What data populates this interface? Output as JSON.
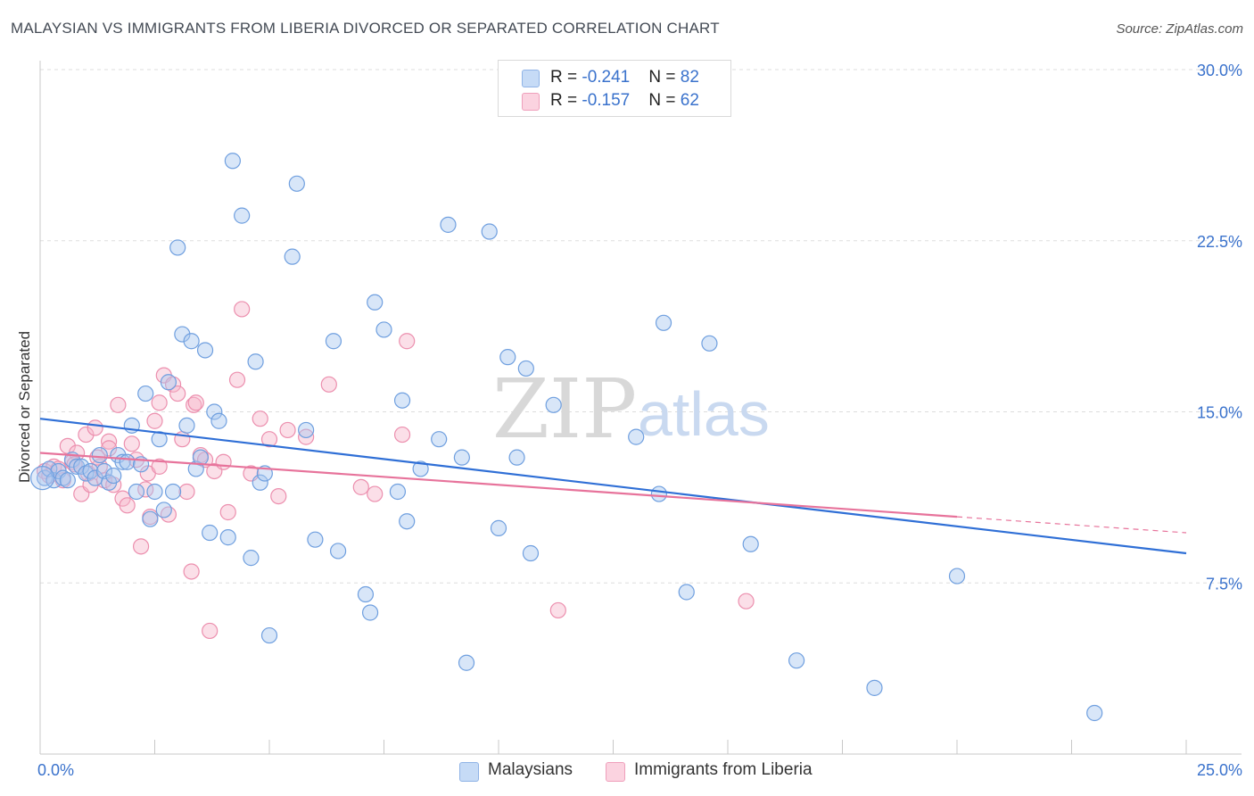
{
  "header": {
    "title": "MALAYSIAN VS IMMIGRANTS FROM LIBERIA DIVORCED OR SEPARATED CORRELATION CHART",
    "source": "Source: ZipAtlas.com"
  },
  "watermark": {
    "zip": "ZIP",
    "atlas": "atlas"
  },
  "legend": {
    "rows": [
      {
        "r_label": "R = ",
        "r_value": "-0.241",
        "n_label": "N = ",
        "n_value": "82",
        "color": "#a9c7f0"
      },
      {
        "r_label": "R = ",
        "r_value": "-0.157",
        "n_label": "N = ",
        "n_value": "62",
        "color": "#f7b8cc"
      }
    ]
  },
  "bottom_legend": [
    {
      "label": "Malaysians",
      "color": "#a9c7f0"
    },
    {
      "label": "Immigrants from Liberia",
      "color": "#f7b8cc"
    }
  ],
  "colors": {
    "blue_fill": "#a9c7f0",
    "blue_stroke": "#6f9fdf",
    "blue_line": "#2f6fd6",
    "pink_fill": "#f7b8cc",
    "pink_stroke": "#ec8fae",
    "pink_line": "#e7739b",
    "tick_label": "#3a72cc",
    "grid": "#dddddd"
  },
  "chart_data": {
    "type": "scatter",
    "title": "MALAYSIAN VS IMMIGRANTS FROM LIBERIA DIVORCED OR SEPARATED CORRELATION CHART",
    "xlabel": "",
    "ylabel": "Divorced or Separated",
    "xlim": [
      0,
      25
    ],
    "ylim": [
      0,
      30
    ],
    "x_tick_labels": [
      "0.0%",
      "25.0%"
    ],
    "y_ticks": [
      7.5,
      15.0,
      22.5,
      30.0
    ],
    "y_tick_labels": [
      "7.5%",
      "15.0%",
      "22.5%",
      "30.0%"
    ],
    "grid": true,
    "series": [
      {
        "name": "Malaysians",
        "r": -0.241,
        "n": 82,
        "trend": {
          "x": [
            0,
            25
          ],
          "y": [
            14.7,
            8.8
          ]
        },
        "points": [
          [
            0.1,
            12.1
          ],
          [
            0.2,
            12.5
          ],
          [
            0.3,
            12.0
          ],
          [
            0.4,
            12.4
          ],
          [
            0.5,
            12.1
          ],
          [
            0.6,
            12.0
          ],
          [
            0.7,
            12.9
          ],
          [
            0.8,
            12.6
          ],
          [
            0.9,
            12.6
          ],
          [
            1.0,
            12.3
          ],
          [
            1.1,
            12.4
          ],
          [
            1.2,
            12.1
          ],
          [
            1.3,
            13.1
          ],
          [
            1.4,
            12.4
          ],
          [
            1.5,
            11.9
          ],
          [
            1.6,
            12.2
          ],
          [
            1.7,
            13.1
          ],
          [
            1.8,
            12.8
          ],
          [
            1.9,
            12.8
          ],
          [
            2.0,
            14.4
          ],
          [
            2.1,
            11.5
          ],
          [
            2.2,
            12.7
          ],
          [
            2.3,
            15.8
          ],
          [
            2.4,
            10.3
          ],
          [
            2.5,
            11.5
          ],
          [
            2.6,
            13.8
          ],
          [
            2.7,
            10.7
          ],
          [
            2.8,
            16.3
          ],
          [
            2.9,
            11.5
          ],
          [
            3.0,
            22.2
          ],
          [
            3.1,
            18.4
          ],
          [
            3.2,
            14.4
          ],
          [
            3.3,
            18.1
          ],
          [
            3.4,
            12.5
          ],
          [
            3.5,
            13.0
          ],
          [
            3.6,
            17.7
          ],
          [
            3.7,
            9.7
          ],
          [
            3.8,
            15.0
          ],
          [
            3.9,
            14.6
          ],
          [
            4.1,
            9.5
          ],
          [
            4.2,
            26.0
          ],
          [
            4.4,
            23.6
          ],
          [
            4.6,
            8.6
          ],
          [
            4.7,
            17.2
          ],
          [
            4.8,
            11.9
          ],
          [
            4.9,
            12.3
          ],
          [
            5.0,
            5.2
          ],
          [
            5.5,
            21.8
          ],
          [
            5.6,
            25.0
          ],
          [
            5.8,
            14.2
          ],
          [
            6.0,
            9.4
          ],
          [
            6.4,
            18.1
          ],
          [
            6.5,
            8.9
          ],
          [
            7.1,
            7.0
          ],
          [
            7.2,
            6.2
          ],
          [
            7.3,
            19.8
          ],
          [
            7.5,
            18.6
          ],
          [
            7.8,
            11.5
          ],
          [
            7.9,
            15.5
          ],
          [
            8.0,
            10.2
          ],
          [
            8.3,
            12.5
          ],
          [
            8.7,
            13.8
          ],
          [
            8.9,
            23.2
          ],
          [
            9.2,
            13.0
          ],
          [
            9.3,
            4.0
          ],
          [
            9.8,
            22.9
          ],
          [
            10.0,
            9.9
          ],
          [
            10.2,
            17.4
          ],
          [
            10.4,
            13.0
          ],
          [
            10.6,
            16.9
          ],
          [
            10.7,
            8.8
          ],
          [
            11.2,
            15.3
          ],
          [
            13.0,
            13.9
          ],
          [
            13.5,
            11.4
          ],
          [
            13.6,
            18.9
          ],
          [
            14.1,
            7.1
          ],
          [
            14.6,
            18.0
          ],
          [
            15.5,
            9.2
          ],
          [
            16.5,
            4.1
          ],
          [
            18.2,
            2.9
          ],
          [
            20.0,
            7.8
          ],
          [
            23.0,
            1.8
          ]
        ]
      },
      {
        "name": "Immigrants from Liberia",
        "r": -0.157,
        "n": 62,
        "trend": {
          "x": [
            0,
            20
          ],
          "y": [
            13.2,
            10.4
          ]
        },
        "trend_dashed": {
          "x": [
            20,
            25
          ],
          "y": [
            10.4,
            9.7
          ]
        },
        "points": [
          [
            0.1,
            12.4
          ],
          [
            0.2,
            12.2
          ],
          [
            0.3,
            12.6
          ],
          [
            0.4,
            12.5
          ],
          [
            0.5,
            12.0
          ],
          [
            0.6,
            13.5
          ],
          [
            0.7,
            12.8
          ],
          [
            0.8,
            13.2
          ],
          [
            0.9,
            11.4
          ],
          [
            1.0,
            14.0
          ],
          [
            1.05,
            12.3
          ],
          [
            1.1,
            11.8
          ],
          [
            1.2,
            14.3
          ],
          [
            1.3,
            12.6
          ],
          [
            1.4,
            12.0
          ],
          [
            1.5,
            13.7
          ],
          [
            1.6,
            11.8
          ],
          [
            1.7,
            15.3
          ],
          [
            1.8,
            11.2
          ],
          [
            1.9,
            10.9
          ],
          [
            2.0,
            13.6
          ],
          [
            2.1,
            12.9
          ],
          [
            2.2,
            9.1
          ],
          [
            2.3,
            11.6
          ],
          [
            2.35,
            12.3
          ],
          [
            2.4,
            10.4
          ],
          [
            2.5,
            14.6
          ],
          [
            2.6,
            15.4
          ],
          [
            2.7,
            16.6
          ],
          [
            2.8,
            10.5
          ],
          [
            2.9,
            16.2
          ],
          [
            3.0,
            15.8
          ],
          [
            3.1,
            13.8
          ],
          [
            3.2,
            11.5
          ],
          [
            3.3,
            8.0
          ],
          [
            3.35,
            15.3
          ],
          [
            3.4,
            15.4
          ],
          [
            3.5,
            13.1
          ],
          [
            3.6,
            12.9
          ],
          [
            3.7,
            5.4
          ],
          [
            3.8,
            12.4
          ],
          [
            4.0,
            12.8
          ],
          [
            4.1,
            10.6
          ],
          [
            4.3,
            16.4
          ],
          [
            4.4,
            19.5
          ],
          [
            4.6,
            12.3
          ],
          [
            4.8,
            14.7
          ],
          [
            5.0,
            13.8
          ],
          [
            5.2,
            11.3
          ],
          [
            5.4,
            14.2
          ],
          [
            5.8,
            13.9
          ],
          [
            6.3,
            16.2
          ],
          [
            7.0,
            11.7
          ],
          [
            7.3,
            11.4
          ],
          [
            7.9,
            14.0
          ],
          [
            8.0,
            18.1
          ],
          [
            11.3,
            6.3
          ],
          [
            15.4,
            6.7
          ],
          [
            1.5,
            13.4
          ],
          [
            2.6,
            12.6
          ],
          [
            0.75,
            12.7
          ],
          [
            1.25,
            13.0
          ]
        ]
      }
    ]
  }
}
